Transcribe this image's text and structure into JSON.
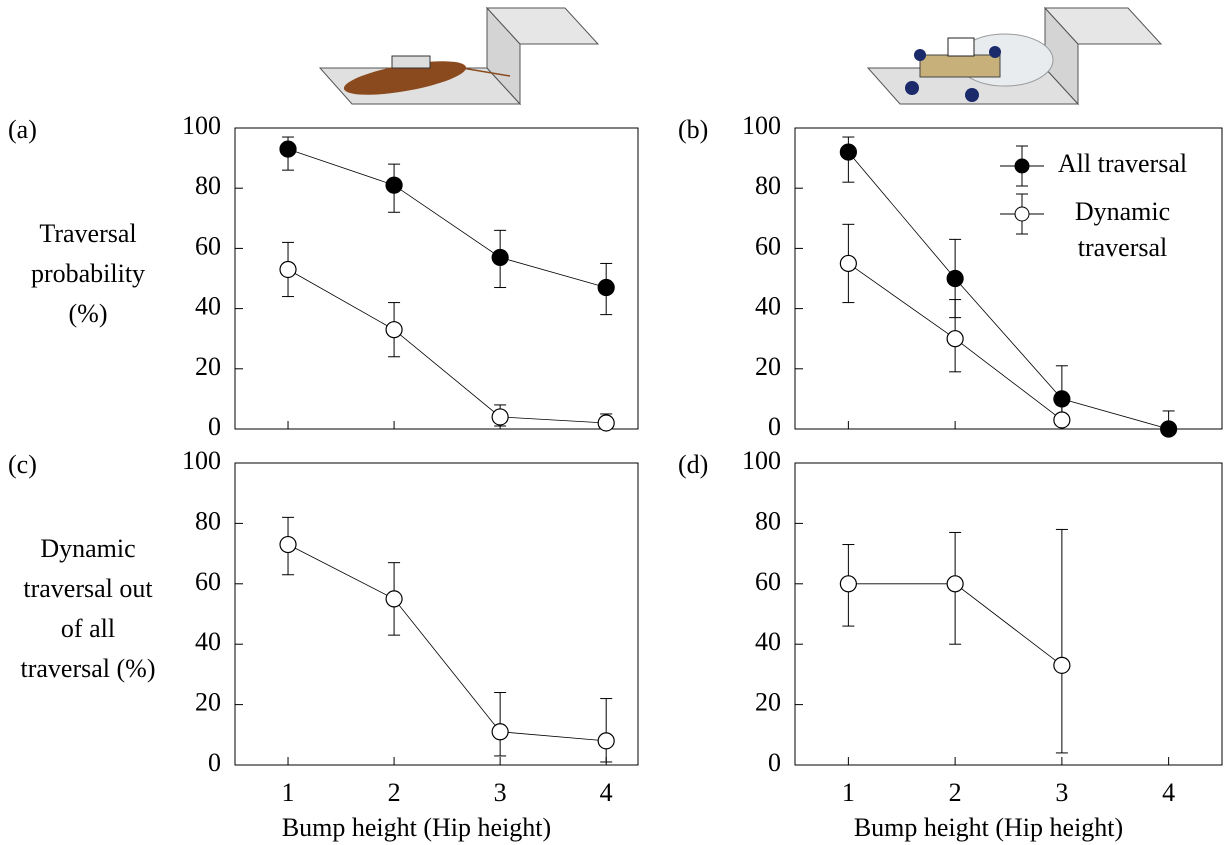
{
  "chart_data": [
    {
      "type": "line",
      "panel_label": "(a)",
      "ylabel": "Traversal probability (%)",
      "x": [
        1,
        2,
        3,
        4
      ],
      "xlim": [
        0.5,
        4.3
      ],
      "xticks": [
        1,
        2,
        3,
        4
      ],
      "show_xtick_labels": false,
      "ylim": [
        0,
        100
      ],
      "yticks": [
        0,
        20,
        40,
        60,
        80,
        100
      ],
      "series": [
        {
          "name": "All traversal",
          "color": "#000000",
          "marker_fill": "#000000",
          "values": [
            93,
            81,
            57,
            47
          ],
          "err_low": [
            7,
            9,
            10,
            9
          ],
          "err_high": [
            4,
            7,
            9,
            8
          ]
        },
        {
          "name": "Dynamic traversal",
          "color": "#000000",
          "marker_fill": "#ffffff",
          "values": [
            53,
            33,
            4,
            2
          ],
          "err_low": [
            9,
            9,
            3,
            2
          ],
          "err_high": [
            9,
            9,
            4,
            3
          ]
        }
      ]
    },
    {
      "type": "line",
      "panel_label": "(b)",
      "x": [
        1,
        2,
        3,
        4
      ],
      "xlim": [
        0.5,
        4.5
      ],
      "xticks": [
        1,
        2,
        3,
        4
      ],
      "show_xtick_labels": false,
      "ylim": [
        0,
        100
      ],
      "yticks": [
        0,
        20,
        40,
        60,
        80,
        100
      ],
      "legend": "upper right",
      "series": [
        {
          "name": "All traversal",
          "color": "#000000",
          "marker_fill": "#000000",
          "values": [
            92,
            50,
            10,
            0
          ],
          "err_low": [
            10,
            13,
            10,
            0
          ],
          "err_high": [
            5,
            13,
            11,
            6
          ]
        },
        {
          "name": "Dynamic traversal",
          "color": "#000000",
          "marker_fill": "#ffffff",
          "values": [
            55,
            30,
            3,
            null
          ],
          "err_low": [
            13,
            11,
            3,
            null
          ],
          "err_high": [
            13,
            13,
            5,
            null
          ]
        }
      ]
    },
    {
      "type": "line",
      "panel_label": "(c)",
      "ylabel": "Dynamic traversal out of all traversal (%)",
      "xlabel": "Bump height (Hip height)",
      "x": [
        1,
        2,
        3,
        4
      ],
      "xlim": [
        0.5,
        4.3
      ],
      "xticks": [
        1,
        2,
        3,
        4
      ],
      "show_xtick_labels": true,
      "ylim": [
        0,
        100
      ],
      "yticks": [
        0,
        20,
        40,
        60,
        80,
        100
      ],
      "series": [
        {
          "name": "Dynamic traversal",
          "color": "#000000",
          "marker_fill": "#ffffff",
          "values": [
            73,
            55,
            11,
            8
          ],
          "err_low": [
            10,
            12,
            8,
            7
          ],
          "err_high": [
            9,
            12,
            13,
            14
          ]
        }
      ]
    },
    {
      "type": "line",
      "panel_label": "(d)",
      "xlabel": "Bump height (Hip height)",
      "x": [
        1,
        2,
        3,
        4
      ],
      "xlim": [
        0.5,
        4.5
      ],
      "xticks": [
        1,
        2,
        3,
        4
      ],
      "show_xtick_labels": true,
      "ylim": [
        0,
        100
      ],
      "yticks": [
        0,
        20,
        40,
        60,
        80,
        100
      ],
      "series": [
        {
          "name": "Dynamic traversal",
          "color": "#000000",
          "marker_fill": "#ffffff",
          "values": [
            60,
            60,
            33,
            null
          ],
          "err_low": [
            14,
            20,
            29,
            null
          ],
          "err_high": [
            13,
            17,
            45,
            null
          ]
        }
      ]
    }
  ]
}
